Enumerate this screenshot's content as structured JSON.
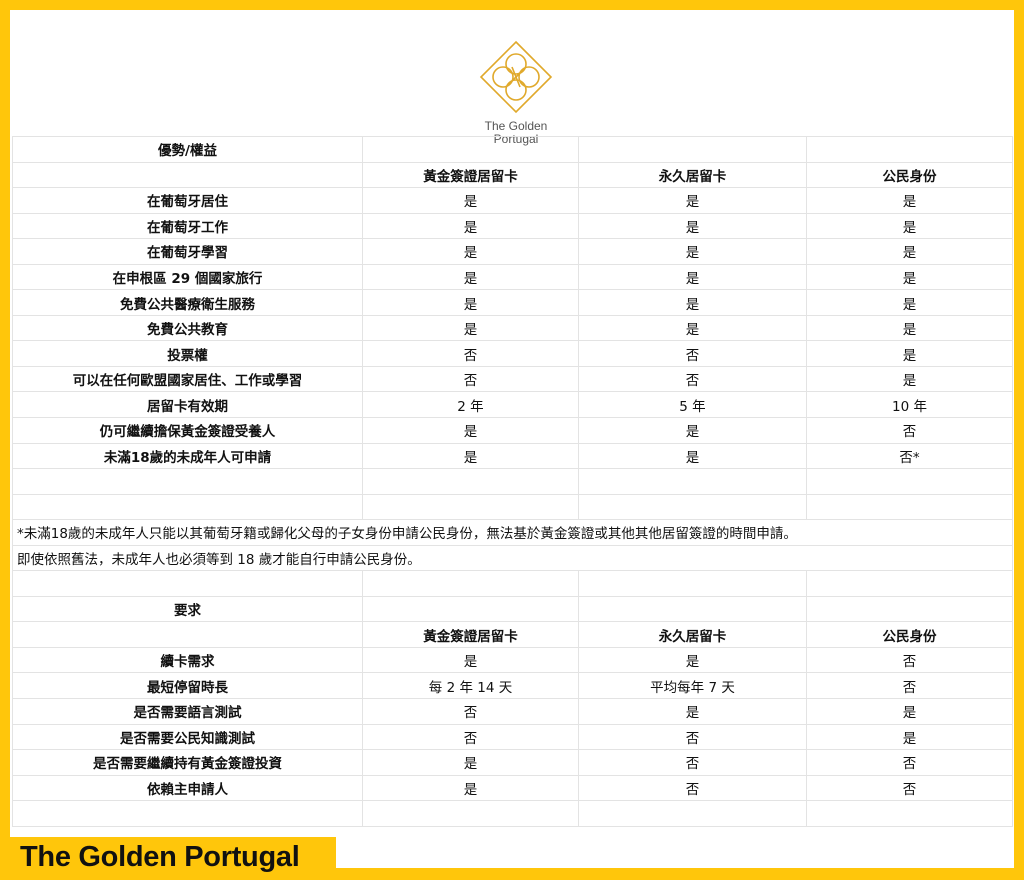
{
  "brand": {
    "logo_text_line1": "The Golden",
    "logo_text_line2": "Portugal",
    "footer_label": "The Golden Portugal",
    "accent_color": "#FFC60B",
    "logo_color": "#E0A92B"
  },
  "benefits": {
    "section_title": "優勢/權益",
    "columns": [
      "黃金簽證居留卡",
      "永久居留卡",
      "公民身份"
    ],
    "rows": [
      {
        "label": "在葡萄牙居住",
        "values": [
          "是",
          "是",
          "是"
        ]
      },
      {
        "label": "在葡萄牙工作",
        "values": [
          "是",
          "是",
          "是"
        ]
      },
      {
        "label": "在葡萄牙學習",
        "values": [
          "是",
          "是",
          "是"
        ]
      },
      {
        "label": "在申根區 29 個國家旅行",
        "values": [
          "是",
          "是",
          "是"
        ]
      },
      {
        "label": "免費公共醫療衛生服務",
        "values": [
          "是",
          "是",
          "是"
        ]
      },
      {
        "label": "免費公共教育",
        "values": [
          "是",
          "是",
          "是"
        ]
      },
      {
        "label": "投票權",
        "values": [
          "否",
          "否",
          "是"
        ]
      },
      {
        "label": "可以在任何歐盟國家居住、工作或學習",
        "values": [
          "否",
          "否",
          "是"
        ]
      },
      {
        "label": "居留卡有效期",
        "values": [
          "2 年",
          "5 年",
          "10 年"
        ]
      },
      {
        "label": "仍可繼續擔保黃金簽證受養人",
        "values": [
          "是",
          "是",
          "否"
        ]
      },
      {
        "label": "未滿18歲的未成年人可申請",
        "values": [
          "是",
          "是",
          "否*"
        ]
      }
    ]
  },
  "footnotes": [
    "*未滿18歲的未成年人只能以其葡萄牙籍或歸化父母的子女身份申請公民身份，無法基於黃金簽證或其他其他居留簽證的時間申請。",
    "即使依照舊法，未成年人也必須等到 18 歲才能自行申請公民身份。"
  ],
  "requirements": {
    "section_title": "要求",
    "columns": [
      "黃金簽證居留卡",
      "永久居留卡",
      "公民身份"
    ],
    "rows": [
      {
        "label": "續卡需求",
        "values": [
          "是",
          "是",
          "否"
        ]
      },
      {
        "label": "最短停留時長",
        "values": [
          "每 2 年 14 天",
          "平均每年 7 天",
          "否"
        ]
      },
      {
        "label": "是否需要語言測試",
        "values": [
          "否",
          "是",
          "是"
        ]
      },
      {
        "label": "是否需要公民知識測試",
        "values": [
          "否",
          "否",
          "是"
        ]
      },
      {
        "label": "是否需要繼續持有黃金簽證投資",
        "values": [
          "是",
          "否",
          "否"
        ]
      },
      {
        "label": "依賴主申請人",
        "values": [
          "是",
          "否",
          "否"
        ]
      }
    ]
  }
}
